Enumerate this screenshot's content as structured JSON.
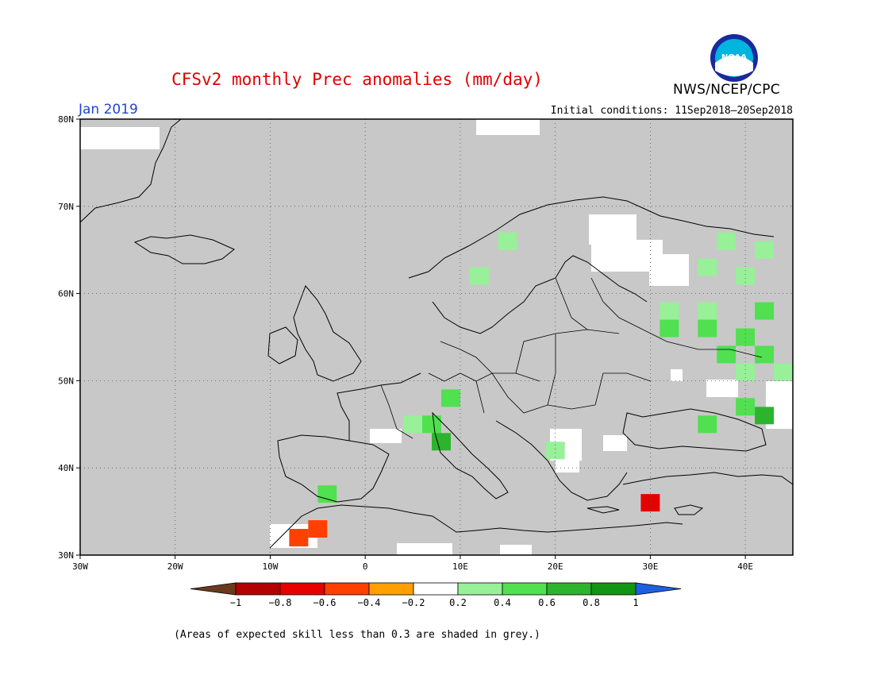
{
  "title": "CFSv2 monthly Prec anomalies (mm/day)",
  "organization": "NWS/NCEP/CPC",
  "logo_text": "NOAA",
  "month_label": "Jan 2019",
  "initial_conditions": "Initial conditions: 11Sep2018–20Sep2018",
  "footnote": "(Areas of expected skill less than 0.3 are shaded in grey.)",
  "map": {
    "region": "Europe",
    "lon_range": [
      -30,
      45
    ],
    "lat_range": [
      30,
      80
    ],
    "lat_ticks": [
      "80N",
      "70N",
      "60N",
      "50N",
      "40N",
      "30N"
    ],
    "lon_ticks": [
      "30W",
      "20W",
      "10W",
      "0",
      "10E",
      "20E",
      "30E",
      "40E"
    ],
    "background_color": "#c8c8c8",
    "gridlines": "dotted"
  },
  "colorbar": {
    "labels": [
      "−1",
      "−0.8",
      "−0.6",
      "−0.4",
      "−0.2",
      "0.2",
      "0.4",
      "0.6",
      "0.8",
      "1"
    ],
    "colors": [
      "#6b3a1e",
      "#b40000",
      "#e60000",
      "#ff4000",
      "#ffa000",
      "#ffffff",
      "#98f098",
      "#50e050",
      "#2cb42c",
      "#129612",
      "#2060e0"
    ]
  },
  "anomaly_cells": [
    {
      "lon": 38,
      "lat": 66,
      "value": 0.3
    },
    {
      "lon": 42,
      "lat": 65,
      "value": 0.3
    },
    {
      "lon": 36,
      "lat": 63,
      "value": 0.3
    },
    {
      "lon": 40,
      "lat": 62,
      "value": 0.3
    },
    {
      "lon": 32,
      "lat": 58,
      "value": 0.3
    },
    {
      "lon": 36,
      "lat": 58,
      "value": 0.3
    },
    {
      "lon": 42,
      "lat": 58,
      "value": 0.5
    },
    {
      "lon": 32,
      "lat": 56,
      "value": 0.5
    },
    {
      "lon": 36,
      "lat": 56,
      "value": 0.5
    },
    {
      "lon": 40,
      "lat": 55,
      "value": 0.5
    },
    {
      "lon": 38,
      "lat": 53,
      "value": 0.5
    },
    {
      "lon": 42,
      "lat": 53,
      "value": 0.5
    },
    {
      "lon": 40,
      "lat": 51,
      "value": 0.3
    },
    {
      "lon": 44,
      "lat": 51,
      "value": 0.3
    },
    {
      "lon": 40,
      "lat": 47,
      "value": 0.5
    },
    {
      "lon": 42,
      "lat": 46,
      "value": 0.7
    },
    {
      "lon": 9,
      "lat": 48,
      "value": 0.5
    },
    {
      "lon": 5,
      "lat": 45,
      "value": 0.3
    },
    {
      "lon": 7,
      "lat": 45,
      "value": 0.5
    },
    {
      "lon": 8,
      "lat": 43,
      "value": 0.7
    },
    {
      "lon": 20,
      "lat": 42,
      "value": 0.3
    },
    {
      "lon": -4,
      "lat": 37,
      "value": 0.5
    },
    {
      "lon": 30,
      "lat": 36,
      "value": -0.6
    },
    {
      "lon": -5,
      "lat": 33,
      "value": -0.4
    },
    {
      "lon": -7,
      "lat": 32,
      "value": -0.4
    },
    {
      "lon": 15,
      "lat": 66,
      "value": 0.3
    },
    {
      "lon": 12,
      "lat": 62,
      "value": 0.3
    },
    {
      "lon": 36,
      "lat": 45,
      "value": 0.5
    }
  ]
}
